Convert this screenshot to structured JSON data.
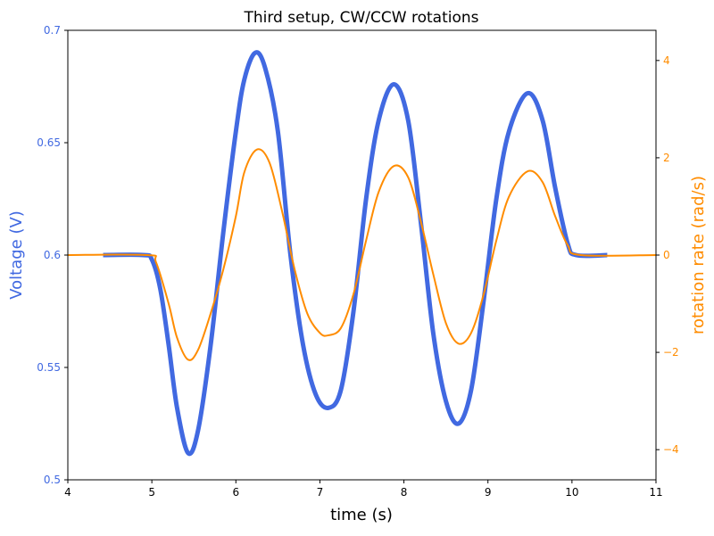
{
  "chart_data": {
    "type": "line",
    "title": "Third setup, CW/CCW rotations",
    "xlabel": "time (s)",
    "ylabel_left": "Voltage (V)",
    "ylabel_right": "rotation rate (rad/s)",
    "xlim": [
      4,
      11
    ],
    "ylim_left": [
      0.5,
      0.7
    ],
    "ylim_right": [
      -4.62,
      4.62
    ],
    "x_ticks": [
      "4",
      "5",
      "6",
      "7",
      "8",
      "9",
      "10",
      "11"
    ],
    "y_left_ticks": [
      "0.5",
      "0.55",
      "0.6",
      "0.65",
      "0.7"
    ],
    "y_right_ticks": [
      "−4",
      "−2",
      "0",
      "2",
      "4"
    ],
    "grid": false,
    "colors": {
      "voltage": "#4169E1",
      "rotation": "#FF8C00"
    },
    "series": [
      {
        "axis": "left",
        "x": [
          4.42,
          4.9,
          5.0,
          5.1,
          5.2,
          5.3,
          5.43,
          5.55,
          5.7,
          5.85,
          6.0,
          6.1,
          6.23,
          6.35,
          6.5,
          6.65,
          6.8,
          6.95,
          7.1,
          7.25,
          7.4,
          7.55,
          7.7,
          7.88,
          8.05,
          8.2,
          8.35,
          8.5,
          8.65,
          8.8,
          8.95,
          9.1,
          9.25,
          9.47,
          9.65,
          9.8,
          9.95,
          10.05,
          10.42
        ],
        "y": [
          0.6,
          0.6,
          0.598,
          0.585,
          0.56,
          0.532,
          0.512,
          0.522,
          0.56,
          0.61,
          0.655,
          0.678,
          0.69,
          0.683,
          0.655,
          0.6,
          0.56,
          0.538,
          0.532,
          0.54,
          0.575,
          0.625,
          0.66,
          0.676,
          0.66,
          0.615,
          0.565,
          0.535,
          0.525,
          0.54,
          0.58,
          0.625,
          0.655,
          0.672,
          0.66,
          0.63,
          0.605,
          0.6,
          0.6
        ]
      },
      {
        "axis": "right",
        "x": [
          4,
          4.95,
          5.05,
          5.2,
          5.3,
          5.43,
          5.55,
          5.7,
          5.85,
          6.0,
          6.1,
          6.25,
          6.4,
          6.55,
          6.7,
          6.85,
          7.0,
          7.1,
          7.25,
          7.4,
          7.55,
          7.7,
          7.88,
          8.05,
          8.2,
          8.35,
          8.5,
          8.65,
          8.8,
          8.95,
          9.1,
          9.25,
          9.47,
          9.65,
          9.8,
          9.95,
          10.1,
          11
        ],
        "y": [
          0,
          0,
          -0.15,
          -1.0,
          -1.7,
          -2.15,
          -1.95,
          -1.2,
          -0.3,
          0.8,
          1.7,
          2.17,
          1.9,
          0.9,
          -0.3,
          -1.2,
          -1.6,
          -1.65,
          -1.5,
          -0.8,
          0.3,
          1.3,
          1.83,
          1.6,
          0.7,
          -0.4,
          -1.4,
          -1.82,
          -1.6,
          -0.8,
          0.3,
          1.2,
          1.72,
          1.5,
          0.8,
          0.2,
          0,
          0
        ]
      }
    ]
  }
}
